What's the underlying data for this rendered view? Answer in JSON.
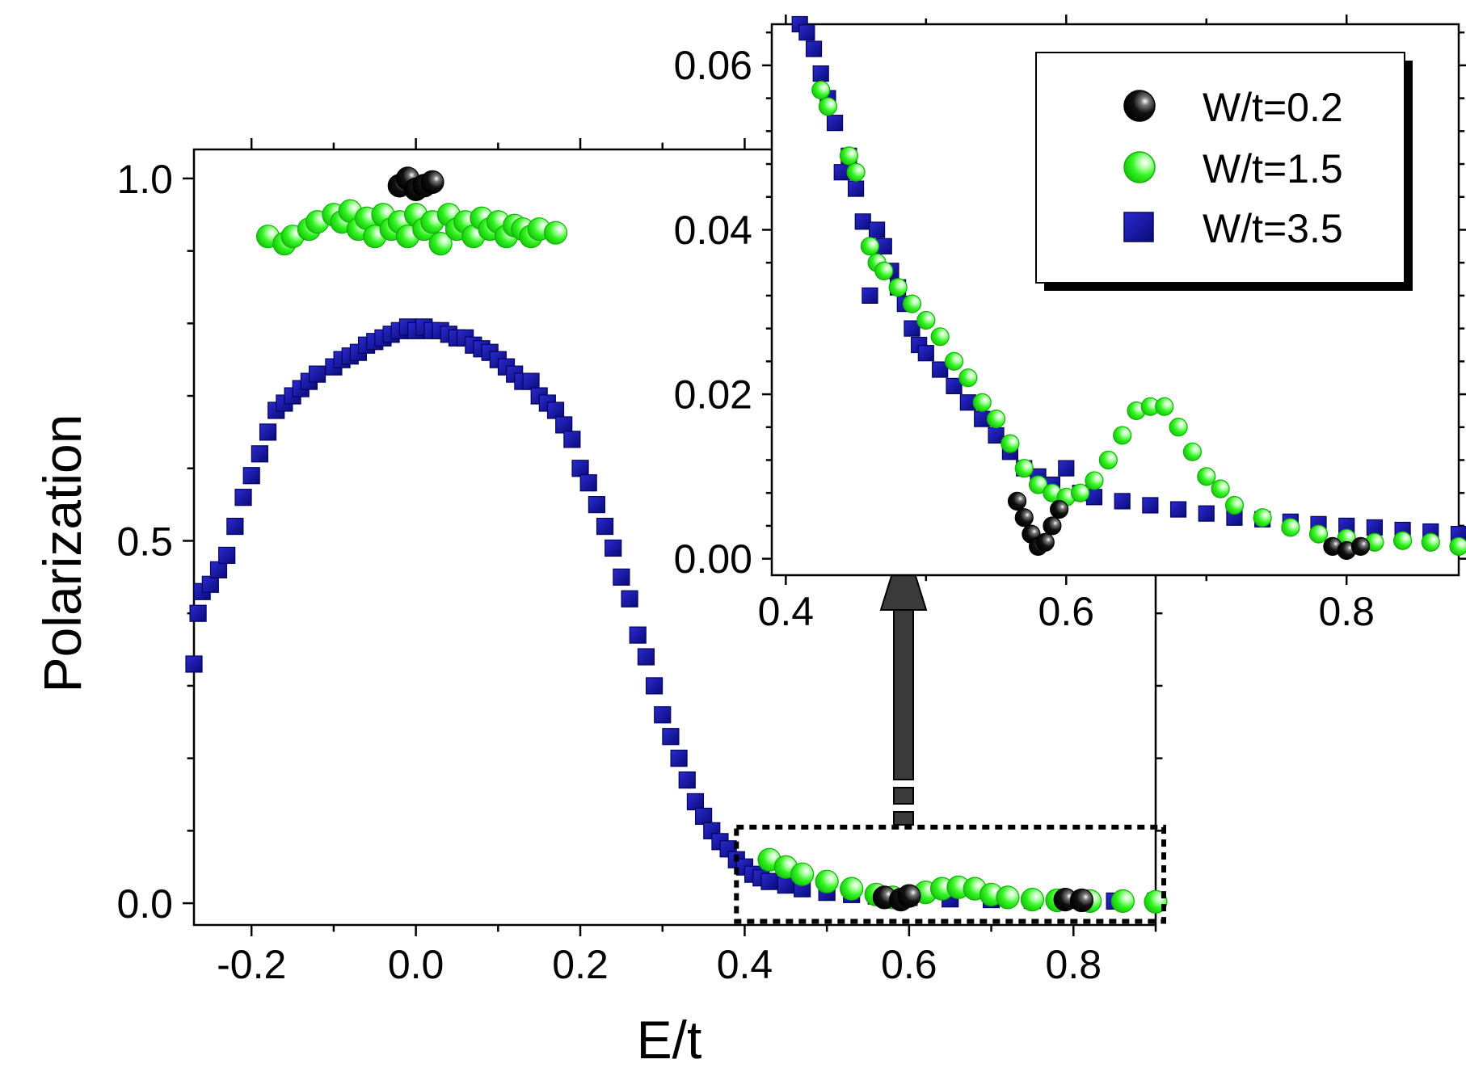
{
  "chart_data": [
    {
      "id": "main",
      "type": "scatter",
      "xlabel": "E/t",
      "ylabel": "Polarization",
      "xlim": [
        -0.27,
        0.9
      ],
      "ylim": [
        -0.03,
        1.04
      ],
      "xticks": [
        -0.2,
        0.0,
        0.2,
        0.4,
        0.6,
        0.8
      ],
      "xtick_labels": [
        "-0.2",
        "0.0",
        "0.2",
        "0.4",
        "0.6",
        "0.8"
      ],
      "yticks": [
        0.0,
        0.5,
        1.0
      ],
      "ytick_labels": [
        "0.0",
        "0.5",
        "1.0"
      ],
      "zoom_box": {
        "x": [
          0.39,
          0.9
        ],
        "y": [
          -0.025,
          0.105
        ]
      },
      "series": [
        {
          "name": "W/t=3.5",
          "marker": "square",
          "color": "#1c1cb4",
          "points": [
            [
              -0.27,
              0.33
            ],
            [
              -0.265,
              0.4
            ],
            [
              -0.26,
              0.43
            ],
            [
              -0.25,
              0.44
            ],
            [
              -0.24,
              0.46
            ],
            [
              -0.23,
              0.48
            ],
            [
              -0.22,
              0.52
            ],
            [
              -0.21,
              0.56
            ],
            [
              -0.2,
              0.59
            ],
            [
              -0.19,
              0.62
            ],
            [
              -0.18,
              0.65
            ],
            [
              -0.17,
              0.68
            ],
            [
              -0.16,
              0.69
            ],
            [
              -0.15,
              0.7
            ],
            [
              -0.14,
              0.71
            ],
            [
              -0.13,
              0.72
            ],
            [
              -0.12,
              0.73
            ],
            [
              -0.1,
              0.74
            ],
            [
              -0.09,
              0.75
            ],
            [
              -0.08,
              0.755
            ],
            [
              -0.07,
              0.76
            ],
            [
              -0.06,
              0.77
            ],
            [
              -0.05,
              0.775
            ],
            [
              -0.04,
              0.78
            ],
            [
              -0.03,
              0.785
            ],
            [
              -0.02,
              0.79
            ],
            [
              -0.01,
              0.795
            ],
            [
              0.0,
              0.79
            ],
            [
              0.01,
              0.795
            ],
            [
              0.02,
              0.79
            ],
            [
              0.03,
              0.79
            ],
            [
              0.04,
              0.785
            ],
            [
              0.05,
              0.78
            ],
            [
              0.06,
              0.78
            ],
            [
              0.07,
              0.77
            ],
            [
              0.08,
              0.765
            ],
            [
              0.09,
              0.76
            ],
            [
              0.1,
              0.75
            ],
            [
              0.11,
              0.74
            ],
            [
              0.12,
              0.73
            ],
            [
              0.13,
              0.72
            ],
            [
              0.14,
              0.72
            ],
            [
              0.15,
              0.7
            ],
            [
              0.16,
              0.69
            ],
            [
              0.17,
              0.68
            ],
            [
              0.18,
              0.66
            ],
            [
              0.19,
              0.64
            ],
            [
              0.2,
              0.6
            ],
            [
              0.21,
              0.58
            ],
            [
              0.22,
              0.55
            ],
            [
              0.23,
              0.52
            ],
            [
              0.24,
              0.49
            ],
            [
              0.25,
              0.45
            ],
            [
              0.26,
              0.42
            ],
            [
              0.27,
              0.37
            ],
            [
              0.28,
              0.34
            ],
            [
              0.29,
              0.3
            ],
            [
              0.3,
              0.26
            ],
            [
              0.31,
              0.23
            ],
            [
              0.32,
              0.2
            ],
            [
              0.33,
              0.17
            ],
            [
              0.34,
              0.14
            ],
            [
              0.35,
              0.12
            ],
            [
              0.36,
              0.1
            ],
            [
              0.37,
              0.085
            ],
            [
              0.38,
              0.075
            ],
            [
              0.39,
              0.06
            ],
            [
              0.4,
              0.05
            ],
            [
              0.41,
              0.04
            ],
            [
              0.42,
              0.035
            ],
            [
              0.43,
              0.03
            ],
            [
              0.45,
              0.025
            ],
            [
              0.47,
              0.02
            ],
            [
              0.5,
              0.015
            ],
            [
              0.53,
              0.012
            ],
            [
              0.56,
              0.01
            ],
            [
              0.6,
              0.008
            ],
            [
              0.65,
              0.006
            ],
            [
              0.7,
              0.005
            ],
            [
              0.75,
              0.004
            ],
            [
              0.8,
              0.004
            ],
            [
              0.85,
              0.003
            ],
            [
              0.9,
              0.003
            ]
          ]
        },
        {
          "name": "W/t=1.5",
          "marker": "circle",
          "color": "#22ee11",
          "points": [
            [
              -0.18,
              0.92
            ],
            [
              -0.16,
              0.91
            ],
            [
              -0.15,
              0.92
            ],
            [
              -0.13,
              0.93
            ],
            [
              -0.12,
              0.94
            ],
            [
              -0.1,
              0.95
            ],
            [
              -0.09,
              0.94
            ],
            [
              -0.08,
              0.955
            ],
            [
              -0.07,
              0.93
            ],
            [
              -0.06,
              0.945
            ],
            [
              -0.05,
              0.92
            ],
            [
              -0.04,
              0.95
            ],
            [
              -0.03,
              0.93
            ],
            [
              -0.02,
              0.94
            ],
            [
              -0.01,
              0.92
            ],
            [
              0.0,
              0.95
            ],
            [
              0.01,
              0.93
            ],
            [
              0.02,
              0.94
            ],
            [
              0.03,
              0.91
            ],
            [
              0.04,
              0.95
            ],
            [
              0.05,
              0.93
            ],
            [
              0.06,
              0.94
            ],
            [
              0.07,
              0.92
            ],
            [
              0.08,
              0.945
            ],
            [
              0.09,
              0.93
            ],
            [
              0.1,
              0.94
            ],
            [
              0.11,
              0.92
            ],
            [
              0.12,
              0.935
            ],
            [
              0.13,
              0.93
            ],
            [
              0.14,
              0.92
            ],
            [
              0.15,
              0.93
            ],
            [
              0.17,
              0.925
            ],
            [
              0.43,
              0.06
            ],
            [
              0.45,
              0.05
            ],
            [
              0.47,
              0.04
            ],
            [
              0.5,
              0.03
            ],
            [
              0.53,
              0.02
            ],
            [
              0.56,
              0.012
            ],
            [
              0.58,
              0.008
            ],
            [
              0.6,
              0.01
            ],
            [
              0.62,
              0.015
            ],
            [
              0.64,
              0.02
            ],
            [
              0.66,
              0.022
            ],
            [
              0.68,
              0.02
            ],
            [
              0.7,
              0.012
            ],
            [
              0.72,
              0.008
            ],
            [
              0.75,
              0.005
            ],
            [
              0.78,
              0.004
            ],
            [
              0.82,
              0.003
            ],
            [
              0.86,
              0.003
            ],
            [
              0.9,
              0.002
            ]
          ]
        },
        {
          "name": "W/t=0.2",
          "marker": "circle",
          "color": "#111111",
          "points": [
            [
              -0.02,
              0.99
            ],
            [
              -0.01,
              1.0
            ],
            [
              0.0,
              0.985
            ],
            [
              0.01,
              0.99
            ],
            [
              0.02,
              0.995
            ],
            [
              0.57,
              0.008
            ],
            [
              0.59,
              0.005
            ],
            [
              0.6,
              0.01
            ],
            [
              0.79,
              0.005
            ],
            [
              0.81,
              0.004
            ]
          ]
        }
      ]
    },
    {
      "id": "inset",
      "type": "scatter",
      "xlim": [
        0.39,
        0.88
      ],
      "ylim": [
        -0.002,
        0.065
      ],
      "xticks": [
        0.4,
        0.6,
        0.8
      ],
      "xtick_labels": [
        "0.4",
        "0.6",
        "0.8"
      ],
      "yticks": [
        0.0,
        0.02,
        0.04,
        0.06
      ],
      "ytick_labels": [
        "0.00",
        "0.02",
        "0.04",
        "0.06"
      ],
      "legend": {
        "placement": "top-right",
        "entries": [
          "W/t=0.2",
          "W/t=1.5",
          "W/t=3.5"
        ]
      },
      "series": [
        {
          "name": "W/t=3.5",
          "marker": "square",
          "color": "#1c1cb4",
          "points": [
            [
              0.41,
              0.065
            ],
            [
              0.415,
              0.064
            ],
            [
              0.42,
              0.062
            ],
            [
              0.425,
              0.059
            ],
            [
              0.43,
              0.056
            ],
            [
              0.435,
              0.053
            ],
            [
              0.44,
              0.047
            ],
            [
              0.445,
              0.049
            ],
            [
              0.45,
              0.045
            ],
            [
              0.455,
              0.041
            ],
            [
              0.46,
              0.032
            ],
            [
              0.465,
              0.04
            ],
            [
              0.47,
              0.038
            ],
            [
              0.475,
              0.035
            ],
            [
              0.48,
              0.033
            ],
            [
              0.485,
              0.031
            ],
            [
              0.49,
              0.028
            ],
            [
              0.495,
              0.026
            ],
            [
              0.5,
              0.025
            ],
            [
              0.51,
              0.023
            ],
            [
              0.52,
              0.021
            ],
            [
              0.53,
              0.019
            ],
            [
              0.54,
              0.017
            ],
            [
              0.55,
              0.015
            ],
            [
              0.56,
              0.013
            ],
            [
              0.57,
              0.011
            ],
            [
              0.58,
              0.01
            ],
            [
              0.59,
              0.009
            ],
            [
              0.6,
              0.011
            ],
            [
              0.61,
              0.008
            ],
            [
              0.62,
              0.0075
            ],
            [
              0.64,
              0.007
            ],
            [
              0.66,
              0.0065
            ],
            [
              0.68,
              0.006
            ],
            [
              0.7,
              0.0055
            ],
            [
              0.72,
              0.005
            ],
            [
              0.74,
              0.0048
            ],
            [
              0.76,
              0.0045
            ],
            [
              0.78,
              0.0042
            ],
            [
              0.8,
              0.004
            ],
            [
              0.82,
              0.0038
            ],
            [
              0.84,
              0.0035
            ],
            [
              0.86,
              0.0033
            ],
            [
              0.88,
              0.003
            ]
          ]
        },
        {
          "name": "W/t=1.5",
          "marker": "circle",
          "color": "#22ee11",
          "points": [
            [
              0.425,
              0.057
            ],
            [
              0.43,
              0.055
            ],
            [
              0.445,
              0.049
            ],
            [
              0.45,
              0.047
            ],
            [
              0.46,
              0.038
            ],
            [
              0.465,
              0.036
            ],
            [
              0.47,
              0.035
            ],
            [
              0.48,
              0.033
            ],
            [
              0.49,
              0.031
            ],
            [
              0.5,
              0.029
            ],
            [
              0.51,
              0.027
            ],
            [
              0.52,
              0.024
            ],
            [
              0.53,
              0.022
            ],
            [
              0.54,
              0.019
            ],
            [
              0.55,
              0.017
            ],
            [
              0.56,
              0.014
            ],
            [
              0.57,
              0.011
            ],
            [
              0.58,
              0.009
            ],
            [
              0.59,
              0.008
            ],
            [
              0.6,
              0.0075
            ],
            [
              0.61,
              0.008
            ],
            [
              0.62,
              0.0095
            ],
            [
              0.63,
              0.012
            ],
            [
              0.64,
              0.015
            ],
            [
              0.65,
              0.018
            ],
            [
              0.66,
              0.0185
            ],
            [
              0.67,
              0.0185
            ],
            [
              0.68,
              0.016
            ],
            [
              0.69,
              0.013
            ],
            [
              0.7,
              0.01
            ],
            [
              0.71,
              0.0085
            ],
            [
              0.72,
              0.0065
            ],
            [
              0.74,
              0.005
            ],
            [
              0.76,
              0.0038
            ],
            [
              0.78,
              0.003
            ],
            [
              0.8,
              0.0025
            ],
            [
              0.82,
              0.002
            ],
            [
              0.84,
              0.0022
            ],
            [
              0.86,
              0.002
            ],
            [
              0.88,
              0.0015
            ]
          ]
        },
        {
          "name": "W/t=0.2",
          "marker": "circle",
          "color": "#111111",
          "points": [
            [
              0.565,
              0.007
            ],
            [
              0.57,
              0.005
            ],
            [
              0.575,
              0.003
            ],
            [
              0.58,
              0.0015
            ],
            [
              0.585,
              0.002
            ],
            [
              0.59,
              0.004
            ],
            [
              0.595,
              0.006
            ],
            [
              0.79,
              0.0015
            ],
            [
              0.8,
              0.001
            ],
            [
              0.81,
              0.0015
            ]
          ]
        }
      ]
    }
  ]
}
